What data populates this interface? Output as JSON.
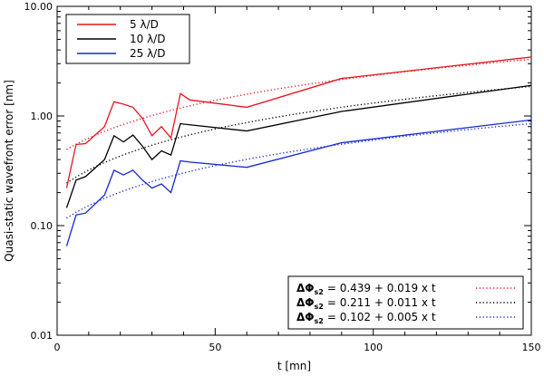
{
  "chart_data": {
    "type": "line",
    "xlabel": "t [mn]",
    "ylabel": "Quasi-static wavefront error [nm]",
    "xlim": [
      0,
      150
    ],
    "ylim": [
      0.01,
      10
    ],
    "yscale": "log",
    "xticks": [
      0,
      50,
      100,
      150
    ],
    "xtick_labels": [
      "0",
      "50",
      "100",
      "150"
    ],
    "yticks": [
      0.01,
      0.1,
      1,
      10
    ],
    "ytick_labels": [
      "0.01",
      "0.10",
      "1.00",
      "10.00"
    ],
    "grid": false,
    "legend_top": {
      "placement": "top-left",
      "entries": [
        "5 λ/D",
        "10 λ/D",
        "25 λ/D"
      ]
    },
    "legend_bottom": {
      "placement": "bottom-right",
      "entries": [
        {
          "lhs": "ΔΦ",
          "sub": "s2",
          "rhs": "= 0.439 + 0.019 x t"
        },
        {
          "lhs": "ΔΦ",
          "sub": "s2",
          "rhs": "= 0.211 + 0.011 x t"
        },
        {
          "lhs": "ΔΦ",
          "sub": "s2",
          "rhs": "= 0.102 + 0.005 x t"
        }
      ]
    },
    "series": [
      {
        "name": "5 λ/D",
        "color": "#e8141e",
        "style": "solid",
        "x": [
          3,
          6,
          9,
          15,
          18,
          21,
          24,
          27,
          30,
          33,
          36,
          39,
          42,
          60,
          90,
          150
        ],
        "y": [
          0.22,
          0.55,
          0.56,
          0.8,
          1.35,
          1.28,
          1.2,
          0.95,
          0.66,
          0.8,
          0.63,
          1.6,
          1.4,
          1.2,
          2.2,
          3.45
        ]
      },
      {
        "name": "10 λ/D",
        "color": "#000000",
        "style": "solid",
        "x": [
          3,
          6,
          9,
          15,
          18,
          21,
          24,
          27,
          30,
          33,
          36,
          39,
          42,
          60,
          90,
          150
        ],
        "y": [
          0.145,
          0.26,
          0.28,
          0.4,
          0.66,
          0.58,
          0.67,
          0.53,
          0.4,
          0.48,
          0.44,
          0.85,
          0.83,
          0.73,
          1.1,
          1.9
        ]
      },
      {
        "name": "25 λ/D",
        "color": "#1428d2",
        "style": "solid",
        "x": [
          3,
          6,
          9,
          15,
          18,
          21,
          24,
          27,
          30,
          33,
          36,
          39,
          42,
          60,
          90,
          150
        ],
        "y": [
          0.065,
          0.125,
          0.13,
          0.19,
          0.32,
          0.29,
          0.32,
          0.26,
          0.22,
          0.24,
          0.2,
          0.39,
          0.38,
          0.34,
          0.57,
          0.92
        ]
      },
      {
        "name": "ΔΦs2 = 0.439 + 0.019 x t",
        "color": "#e8141e",
        "style": "dotted",
        "fit": {
          "a": 0.439,
          "b": 0.019
        },
        "x": [
          3,
          150
        ],
        "y": [
          0.496,
          3.289
        ]
      },
      {
        "name": "ΔΦs2 = 0.211 + 0.011 x t",
        "color": "#000000",
        "style": "dotted",
        "fit": {
          "a": 0.211,
          "b": 0.011
        },
        "x": [
          3,
          150
        ],
        "y": [
          0.244,
          1.861
        ]
      },
      {
        "name": "ΔΦs2 = 0.102 + 0.005 x t",
        "color": "#1428d2",
        "style": "dotted",
        "fit": {
          "a": 0.102,
          "b": 0.005
        },
        "x": [
          3,
          150
        ],
        "y": [
          0.117,
          0.852
        ]
      }
    ]
  }
}
